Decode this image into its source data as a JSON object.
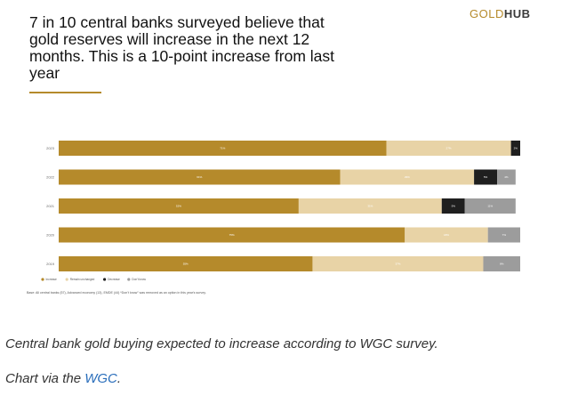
{
  "title": "7 in 10 central banks surveyed believe that gold reserves will increase in the next 12 months. This is a 10-point increase from last year",
  "brand": {
    "gold": "GOLD",
    "hub": "HUB"
  },
  "base_note": "Base: All central banks (57), Advanced economy (13), EMDE (44) *Don't know\" was removed as an option in this year's survey.",
  "caption": "Central bank gold buying expected to increase according to WGC survey.",
  "credit": {
    "prefix": "Chart via the ",
    "link": "WGC",
    "suffix": "."
  },
  "colors": {
    "increase": "#b58a2b",
    "remain": "#e8d3a6",
    "decrease": "#1f1f1f",
    "dont_know": "#9c9c9c"
  },
  "chart_data": {
    "type": "bar",
    "orientation": "horizontal",
    "stacked": true,
    "categories": [
      "2023",
      "2022",
      "2021",
      "2020",
      "2019"
    ],
    "series": [
      {
        "name": "Increase",
        "values": [
          71,
          61,
          52,
          75,
          55
        ]
      },
      {
        "name": "Remain unchanged",
        "values": [
          27,
          29,
          31,
          18,
          37
        ]
      },
      {
        "name": "Decrease",
        "values": [
          2,
          5,
          5,
          0,
          0
        ]
      },
      {
        "name": "Don't know",
        "values": [
          0,
          4,
          11,
          7,
          8
        ]
      }
    ],
    "xlim": [
      0,
      100
    ],
    "legend": "bottom-left",
    "grid": false
  }
}
